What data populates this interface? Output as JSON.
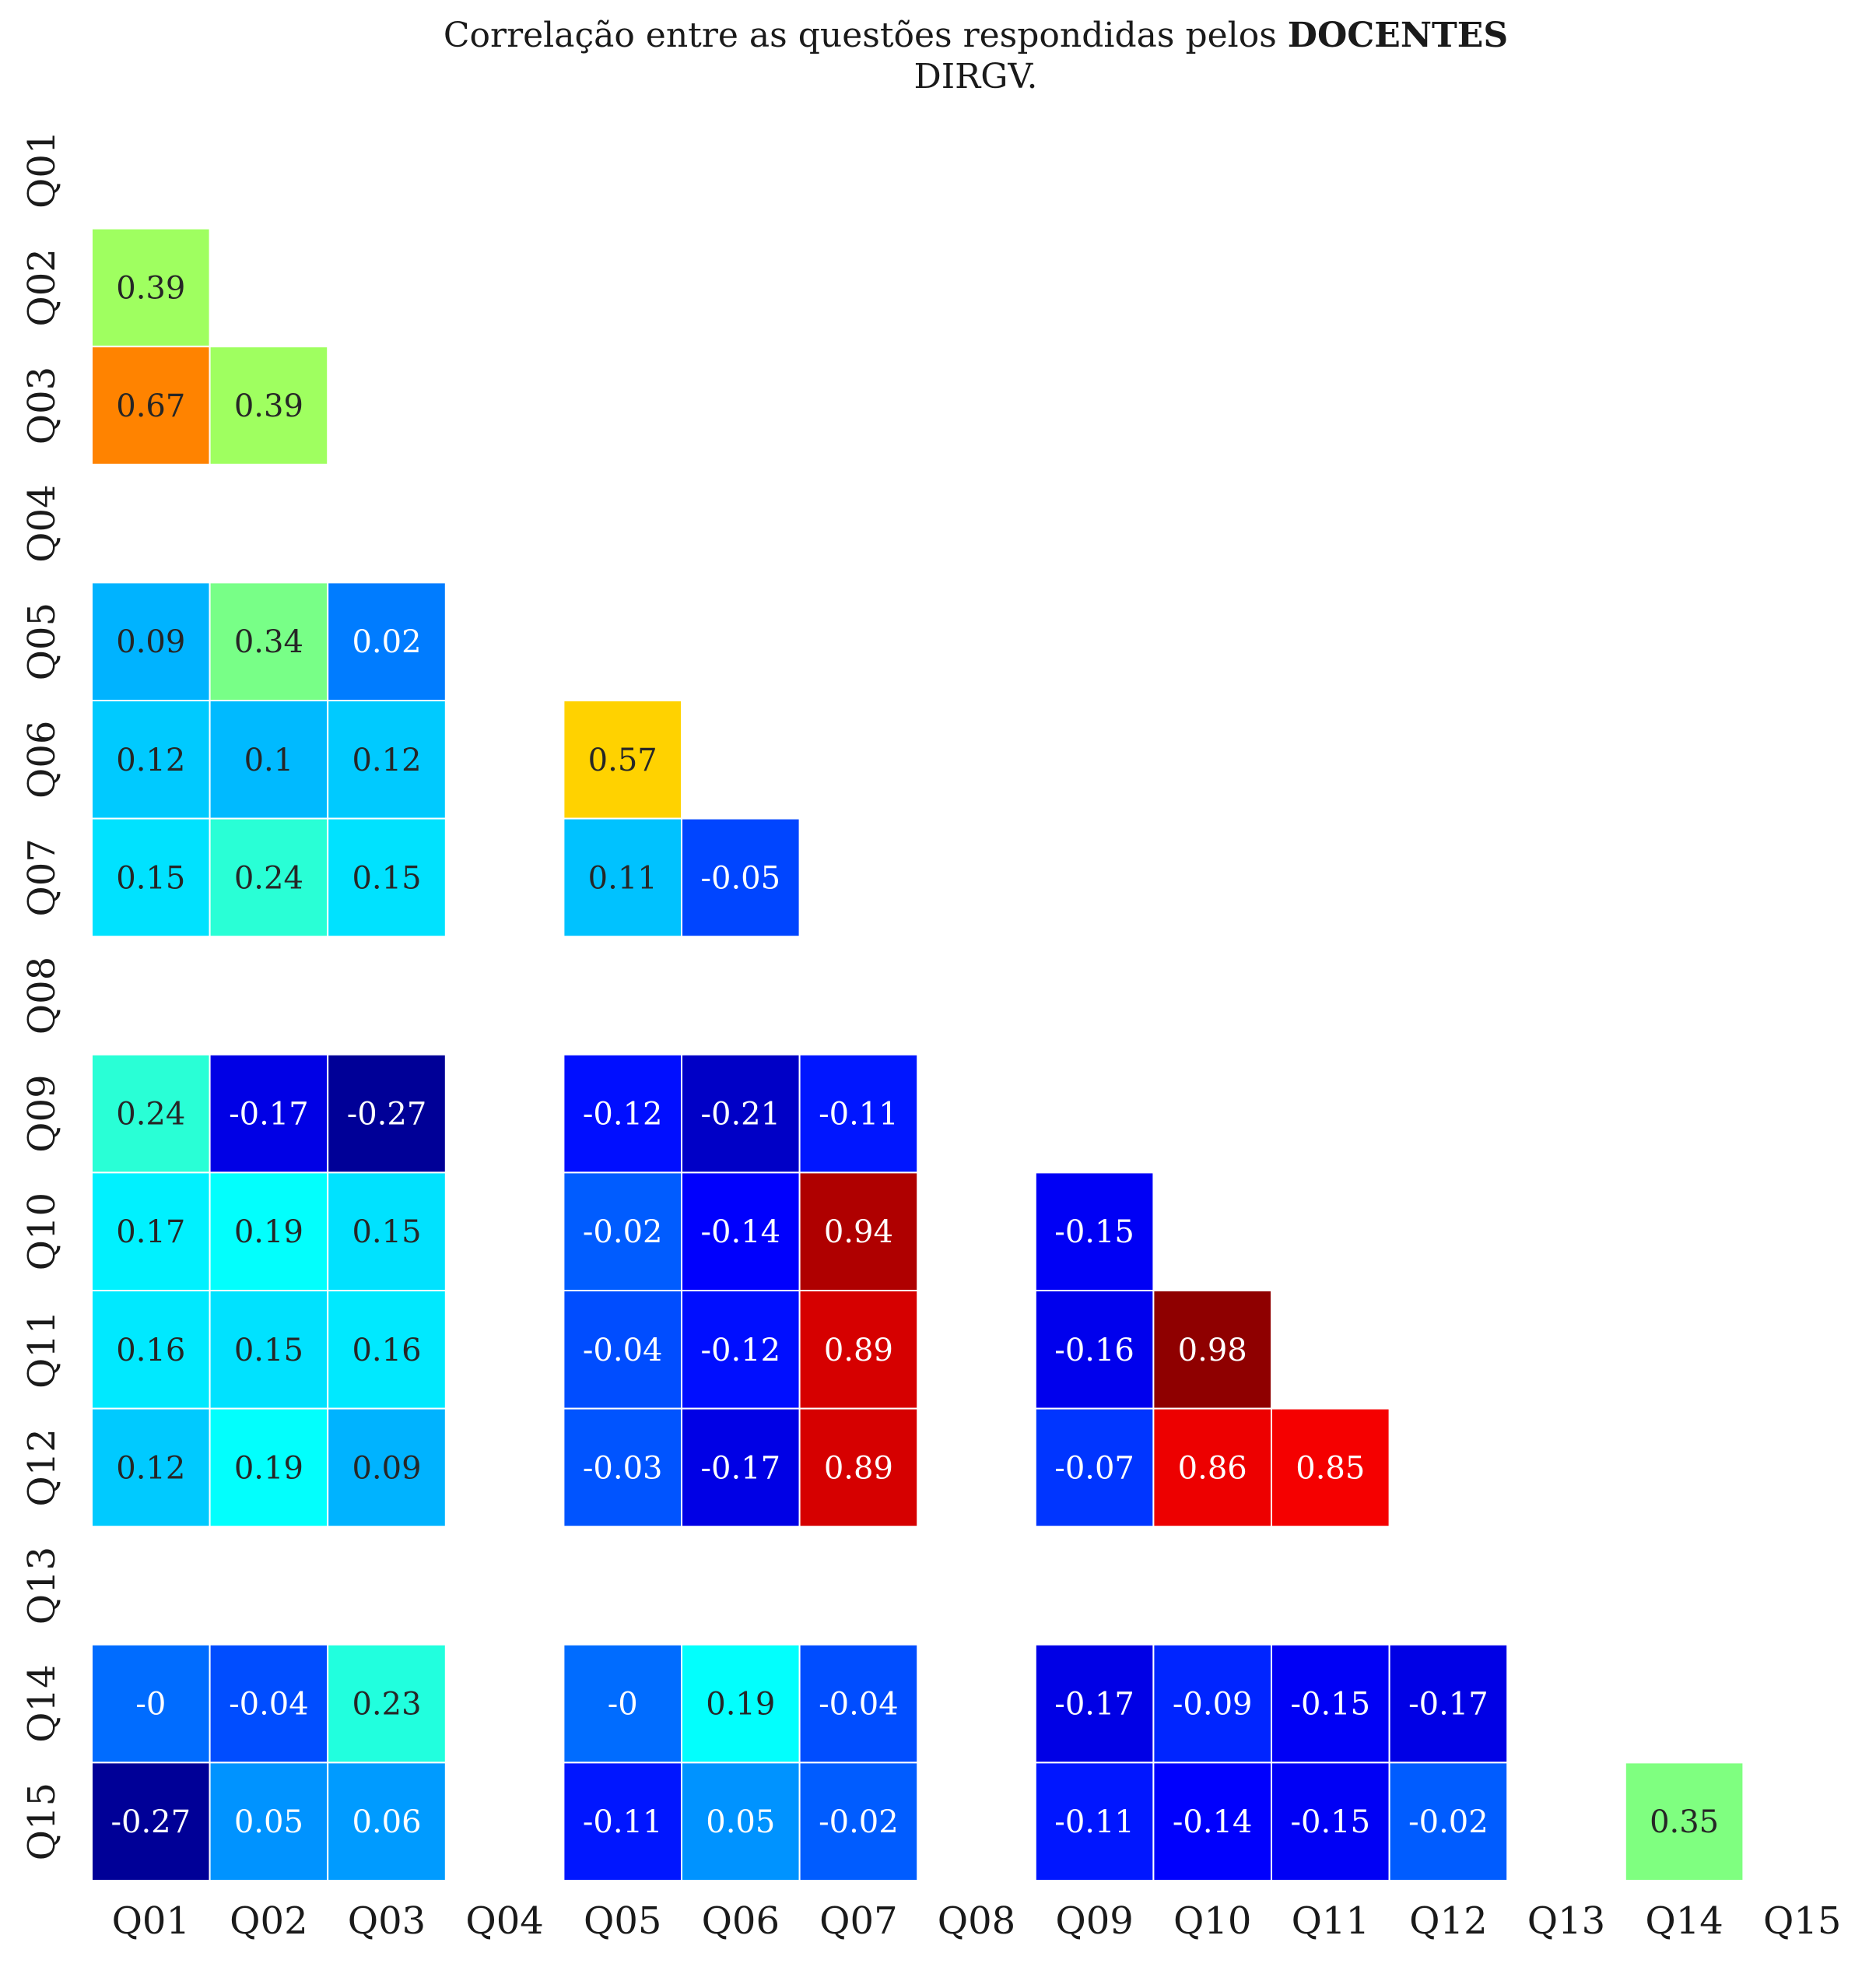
{
  "chart_data": {
    "type": "heatmap",
    "title": {
      "line1_prefix": "Correlação entre as questões respondidas pelos ",
      "line1_bold": "DOCENTES",
      "line2": "DIRGV."
    },
    "xlabel": "",
    "ylabel": "",
    "colormap": "jet",
    "value_range": [
      -0.3,
      1.0
    ],
    "layout": "lower-triangle",
    "grid": false,
    "categories": [
      "Q01",
      "Q02",
      "Q03",
      "Q04",
      "Q05",
      "Q06",
      "Q07",
      "Q08",
      "Q09",
      "Q10",
      "Q11",
      "Q12",
      "Q13",
      "Q14",
      "Q15"
    ],
    "rows": [
      [],
      [
        "0.39"
      ],
      [
        "0.67",
        "0.39"
      ],
      [],
      [
        "0.09",
        "0.34",
        "0.02",
        null
      ],
      [
        "0.12",
        "0.1",
        "0.12",
        null,
        "0.57"
      ],
      [
        "0.15",
        "0.24",
        "0.15",
        null,
        "0.11",
        "-0.05"
      ],
      [],
      [
        "0.24",
        "-0.17",
        "-0.27",
        null,
        "-0.12",
        "-0.21",
        "-0.11",
        null
      ],
      [
        "0.17",
        "0.19",
        "0.15",
        null,
        "-0.02",
        "-0.14",
        "0.94",
        null,
        "-0.15"
      ],
      [
        "0.16",
        "0.15",
        "0.16",
        null,
        "-0.04",
        "-0.12",
        "0.89",
        null,
        "-0.16",
        "0.98"
      ],
      [
        "0.12",
        "0.19",
        "0.09",
        null,
        "-0.03",
        "-0.17",
        "0.89",
        null,
        "-0.07",
        "0.86",
        "0.85"
      ],
      [],
      [
        "-0",
        "-0.04",
        "0.23",
        null,
        "-0",
        "0.19",
        "-0.04",
        null,
        "-0.17",
        "-0.09",
        "-0.15",
        "-0.17",
        null
      ],
      [
        "-0.27",
        "0.05",
        "0.06",
        null,
        "-0.11",
        "0.05",
        "-0.02",
        null,
        "-0.11",
        "-0.14",
        "-0.15",
        "-0.02",
        null,
        "0.35"
      ]
    ]
  }
}
